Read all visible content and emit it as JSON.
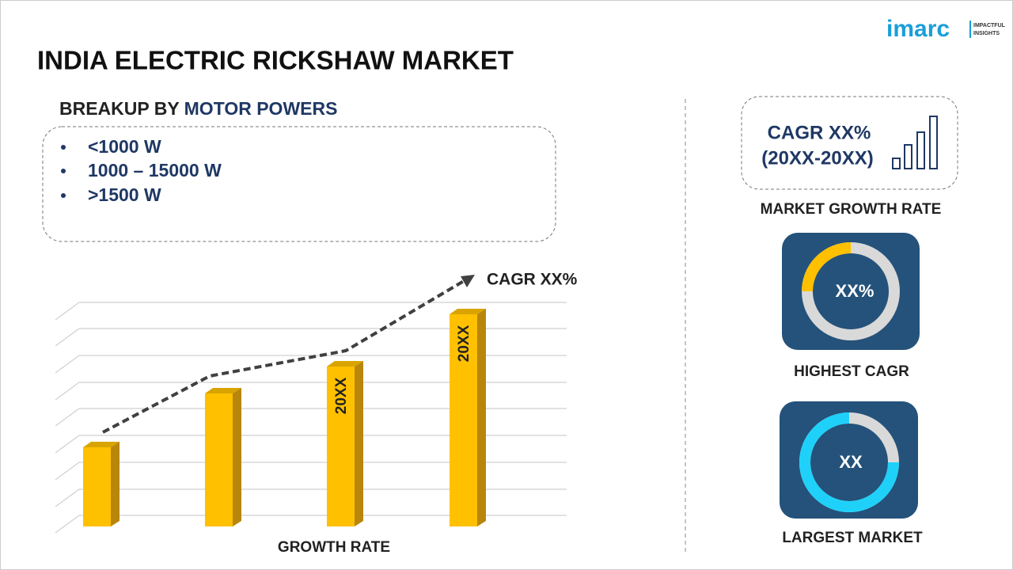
{
  "logo": {
    "brand": "imarc",
    "tagline": [
      "IMPACTFUL",
      "INSIGHTS"
    ]
  },
  "title": "INDIA ELECTRIC RICKSHAW MARKET",
  "breakup": {
    "prefix": "BREAKUP BY",
    "segment": "MOTOR POWERS",
    "items": [
      "<1000 W",
      "1000 – 15000 W",
      ">1500 W"
    ]
  },
  "chart": {
    "cagr_label": "CAGR XX%",
    "bar_labels": [
      "20XX",
      "20XX"
    ],
    "caption": "GROWTH RATE"
  },
  "panels": [
    {
      "lines": [
        "CAGR XX%",
        "(20XX-20XX)"
      ],
      "caption": "MARKET GROWTH RATE"
    },
    {
      "value": "XX%",
      "caption": "HIGHEST CAGR"
    },
    {
      "value": "XX",
      "caption": "LARGEST MARKET"
    }
  ]
}
